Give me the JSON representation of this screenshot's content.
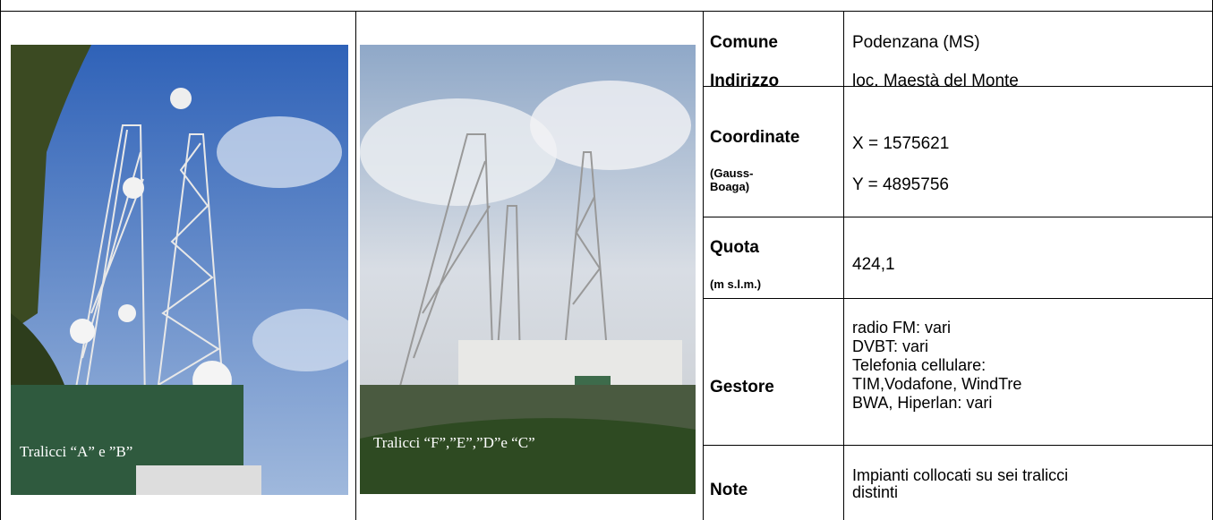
{
  "photos": [
    {
      "caption": "Tralicci “A” e ”B”"
    },
    {
      "caption": "Tralicci “F”,”E”,”D”e “C”"
    }
  ],
  "table": {
    "rows": [
      {
        "labels": [
          "Comune",
          "Indirizzo"
        ],
        "values": [
          "Podenzana (MS)",
          "loc. Maestà del Monte"
        ]
      },
      {
        "labels": [
          "Coordinate"
        ],
        "sublabels": [
          "(Gauss-",
          "Boaga)"
        ],
        "values": [
          "X = 1575621",
          "Y = 4895756"
        ]
      },
      {
        "labels": [
          "Quota"
        ],
        "sublabels": [
          "(m s.l.m.)"
        ],
        "values": [
          "424,1"
        ]
      },
      {
        "labels": [
          "Gestore"
        ],
        "values": [
          "radio FM: vari",
          "DVBT: vari",
          "Telefonia cellulare:",
          "TIM,Vodafone, WindTre",
          "BWA, Hiperlan: vari"
        ]
      },
      {
        "labels": [
          "Note"
        ],
        "values": [
          "Impianti collocati su sei tralicci",
          "distinti"
        ]
      }
    ]
  }
}
